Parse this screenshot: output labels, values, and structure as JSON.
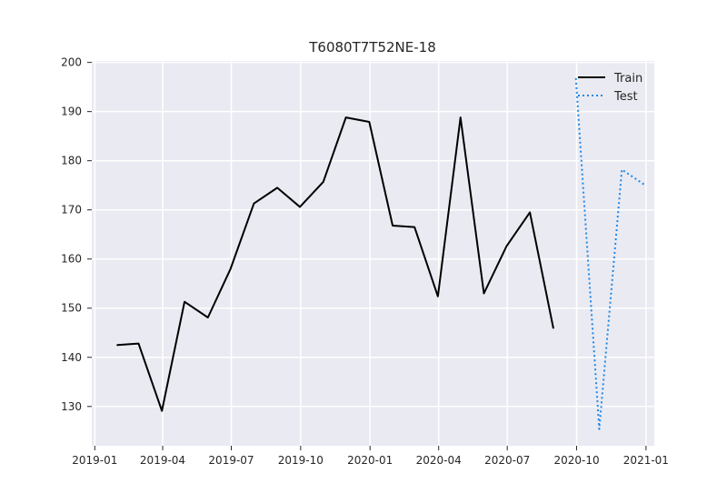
{
  "chart_data": {
    "type": "line",
    "title": "T6080T7T52NE-18",
    "xlabel": "",
    "ylabel": "",
    "x_axis_type": "date",
    "xlim": [
      "2018-12-28",
      "2021-01-12"
    ],
    "ylim": [
      122.0,
      200.3
    ],
    "x_ticks": [
      "2019-01",
      "2019-04",
      "2019-07",
      "2019-10",
      "2020-01",
      "2020-04",
      "2020-07",
      "2020-10",
      "2021-01"
    ],
    "y_ticks": [
      130,
      140,
      150,
      160,
      170,
      180,
      190,
      200
    ],
    "grid": true,
    "legend_position": "top-right",
    "series": [
      {
        "name": "Train",
        "color": "#000000",
        "line_style": "solid",
        "points": [
          {
            "x": "2019-01-31",
            "y": 142.5
          },
          {
            "x": "2019-02-28",
            "y": 142.8
          },
          {
            "x": "2019-03-31",
            "y": 129.1
          },
          {
            "x": "2019-04-30",
            "y": 151.3
          },
          {
            "x": "2019-05-31",
            "y": 148.1
          },
          {
            "x": "2019-06-30",
            "y": 158.0
          },
          {
            "x": "2019-07-31",
            "y": 171.3
          },
          {
            "x": "2019-08-31",
            "y": 174.5
          },
          {
            "x": "2019-09-30",
            "y": 170.6
          },
          {
            "x": "2019-10-31",
            "y": 175.7
          },
          {
            "x": "2019-11-30",
            "y": 188.8
          },
          {
            "x": "2019-12-31",
            "y": 187.9
          },
          {
            "x": "2020-01-31",
            "y": 166.8
          },
          {
            "x": "2020-02-29",
            "y": 166.5
          },
          {
            "x": "2020-03-31",
            "y": 152.4
          },
          {
            "x": "2020-04-30",
            "y": 188.8
          },
          {
            "x": "2020-05-31",
            "y": 153.0
          },
          {
            "x": "2020-06-30",
            "y": 162.6
          },
          {
            "x": "2020-07-31",
            "y": 169.5
          },
          {
            "x": "2020-08-31",
            "y": 146.0
          }
        ]
      },
      {
        "name": "Test",
        "color": "#1e88e5",
        "line_style": "dotted",
        "points": [
          {
            "x": "2020-09-30",
            "y": 196.8
          },
          {
            "x": "2020-10-31",
            "y": 125.4
          },
          {
            "x": "2020-11-30",
            "y": 178.2
          },
          {
            "x": "2020-12-31",
            "y": 175.0
          }
        ]
      }
    ]
  }
}
